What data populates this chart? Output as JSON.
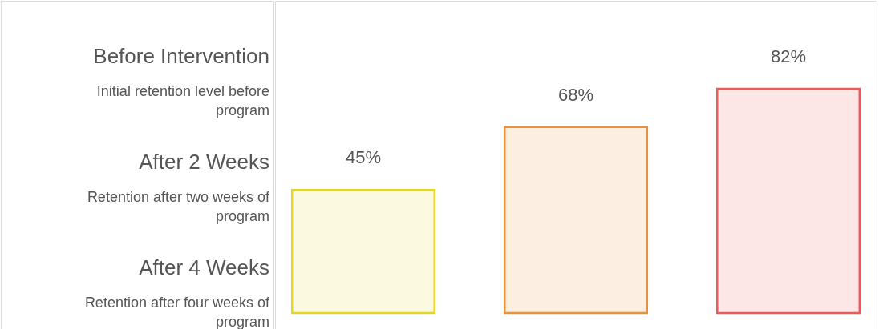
{
  "chart_data": {
    "type": "bar",
    "categories": [
      null,
      null,
      null
    ],
    "values": [
      45,
      68,
      82
    ],
    "colors": [
      "#e6d42a",
      "#e8913a",
      "#ec5a5a"
    ],
    "data_labels": true,
    "value_labels": [
      "45%",
      "68%",
      "82%"
    ],
    "annotations": [
      "Before Intervention",
      "Initial retention level before program",
      "After 2 Weeks",
      "Retention after two weeks of program",
      "After 4 Weeks",
      "Retention after four weeks of program"
    ]
  }
}
